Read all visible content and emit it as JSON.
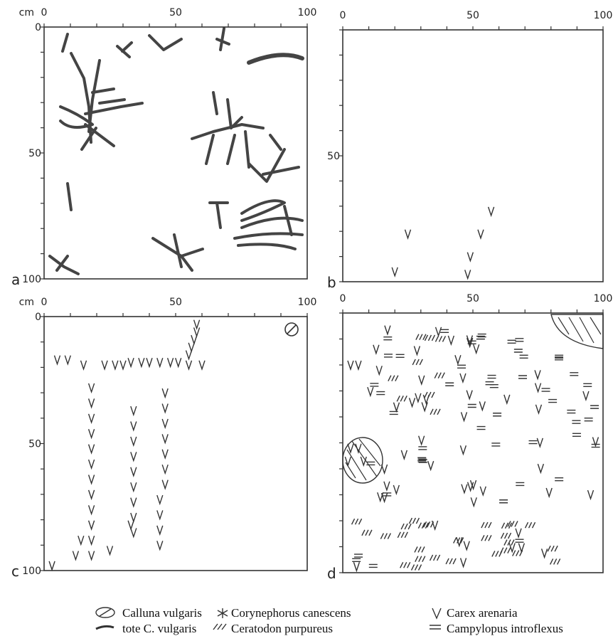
{
  "panels": [
    {
      "label": "a",
      "unit": "cm",
      "x_ticks": [
        0,
        50,
        100
      ],
      "y_ticks": [
        0,
        50,
        100
      ]
    },
    {
      "label": "b",
      "x_ticks": [
        0,
        50,
        100
      ],
      "y_ticks": [
        50
      ]
    },
    {
      "label": "c",
      "unit": "cm",
      "x_ticks": [
        0,
        50,
        100
      ],
      "y_ticks": [
        0,
        50,
        100
      ]
    },
    {
      "label": "d",
      "x_ticks": [
        0,
        50,
        100
      ]
    }
  ],
  "legend": [
    "Calluna vulgaris",
    "tote C. vulgaris",
    "Corynephorus canescens",
    "Ceratodon purpureus",
    "Carex arenaria",
    "Campylopus introflexus"
  ]
}
